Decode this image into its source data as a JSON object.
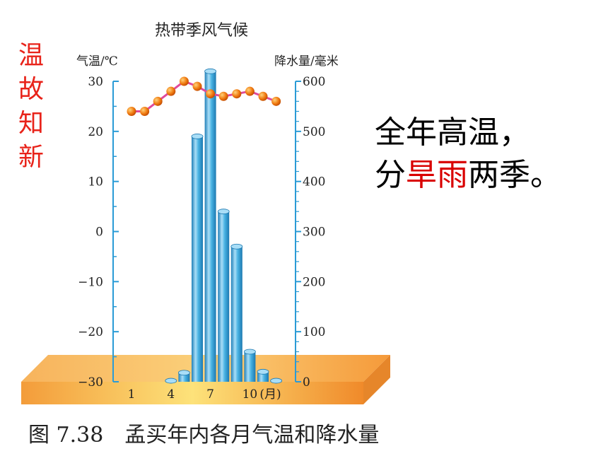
{
  "side_label": [
    "温",
    "故",
    "知",
    "新"
  ],
  "summary": {
    "line1": "全年高温，",
    "line2_pre": "分",
    "line2_dry": "旱",
    "line2_rain": "雨",
    "line2_post": "两季。",
    "highlight_color": "#d90000"
  },
  "caption": "图 7.38　孟买年内各月气温和降水量",
  "chart_data": {
    "type": "bar+line",
    "title": "热带季风气候",
    "left_axis_label": "气温/℃",
    "right_axis_label": "降水量/毫米",
    "x": [
      1,
      2,
      3,
      4,
      5,
      6,
      7,
      8,
      9,
      10,
      11,
      12
    ],
    "x_tick_labels": [
      "1",
      "4",
      "7",
      "10",
      "(月)"
    ],
    "x_tick_months": [
      1,
      4,
      7,
      10
    ],
    "temperature": [
      24,
      24,
      26,
      28,
      30,
      29,
      27.5,
      27,
      27.5,
      28,
      27,
      26
    ],
    "precipitation": [
      0,
      0,
      0,
      2,
      18,
      490,
      620,
      340,
      270,
      60,
      20,
      2
    ],
    "temperature_ylim": [
      -30,
      30
    ],
    "temperature_ticks": [
      30,
      20,
      10,
      0,
      -10,
      -20,
      -30
    ],
    "temperature_tick_labels": [
      "30",
      "20",
      "10",
      "0",
      "−10",
      "−20",
      "−30"
    ],
    "precipitation_ylim": [
      0,
      600
    ],
    "precipitation_ticks": [
      600,
      500,
      400,
      300,
      200,
      100,
      0
    ],
    "colors": {
      "bar": "#3fa9dc",
      "bar_light": "#a9def7",
      "line": "#e04a9a",
      "point": "#f07a10",
      "base": "#f6a93b"
    }
  }
}
